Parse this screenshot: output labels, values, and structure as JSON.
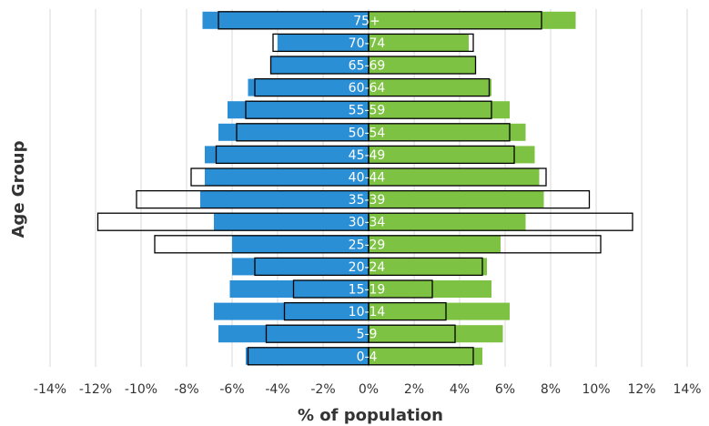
{
  "chart_data": {
    "type": "bar",
    "orientation": "horizontal",
    "layout": "population-pyramid",
    "xlabel": "% of population",
    "ylabel": "Age Group",
    "x_ticks": [
      "-14%",
      "-12%",
      "-10%",
      "-8%",
      "-6%",
      "-4%",
      "-2%",
      "0%",
      "2%",
      "4%",
      "6%",
      "8%",
      "10%",
      "12%",
      "14%"
    ],
    "xlim": [
      -14,
      14
    ],
    "grid": true,
    "categories": [
      "0-4",
      "5-9",
      "10-14",
      "15-19",
      "20-24",
      "25-29",
      "30-34",
      "35-39",
      "40-44",
      "45-49",
      "50-54",
      "55-59",
      "60-64",
      "65-69",
      "70-74",
      "75+"
    ],
    "series": [
      {
        "side": "left",
        "style": "solid",
        "color": "#2b8fd6",
        "values": [
          -5.4,
          -6.6,
          -6.8,
          -6.1,
          -6.0,
          -6.0,
          -6.8,
          -7.4,
          -7.2,
          -7.2,
          -6.6,
          -6.2,
          -5.3,
          -4.3,
          -4.0,
          -7.3
        ]
      },
      {
        "side": "right",
        "style": "solid",
        "color": "#7dc242",
        "values": [
          5.0,
          5.9,
          6.2,
          5.4,
          5.2,
          5.8,
          6.9,
          7.7,
          7.5,
          7.3,
          6.9,
          6.2,
          5.4,
          4.7,
          4.4,
          9.1
        ]
      },
      {
        "side": "left",
        "style": "outline",
        "color": "#000000",
        "values": [
          -5.3,
          -4.5,
          -3.7,
          -3.3,
          -5.0,
          -9.4,
          -11.9,
          -10.2,
          -7.8,
          -6.7,
          -5.8,
          -5.4,
          -5.0,
          -4.3,
          -4.2,
          -6.6
        ]
      },
      {
        "side": "right",
        "style": "outline",
        "color": "#000000",
        "values": [
          4.6,
          3.8,
          3.4,
          2.8,
          5.0,
          10.2,
          11.6,
          9.7,
          7.8,
          6.4,
          6.2,
          5.4,
          5.3,
          4.7,
          4.6,
          7.6
        ]
      }
    ]
  }
}
